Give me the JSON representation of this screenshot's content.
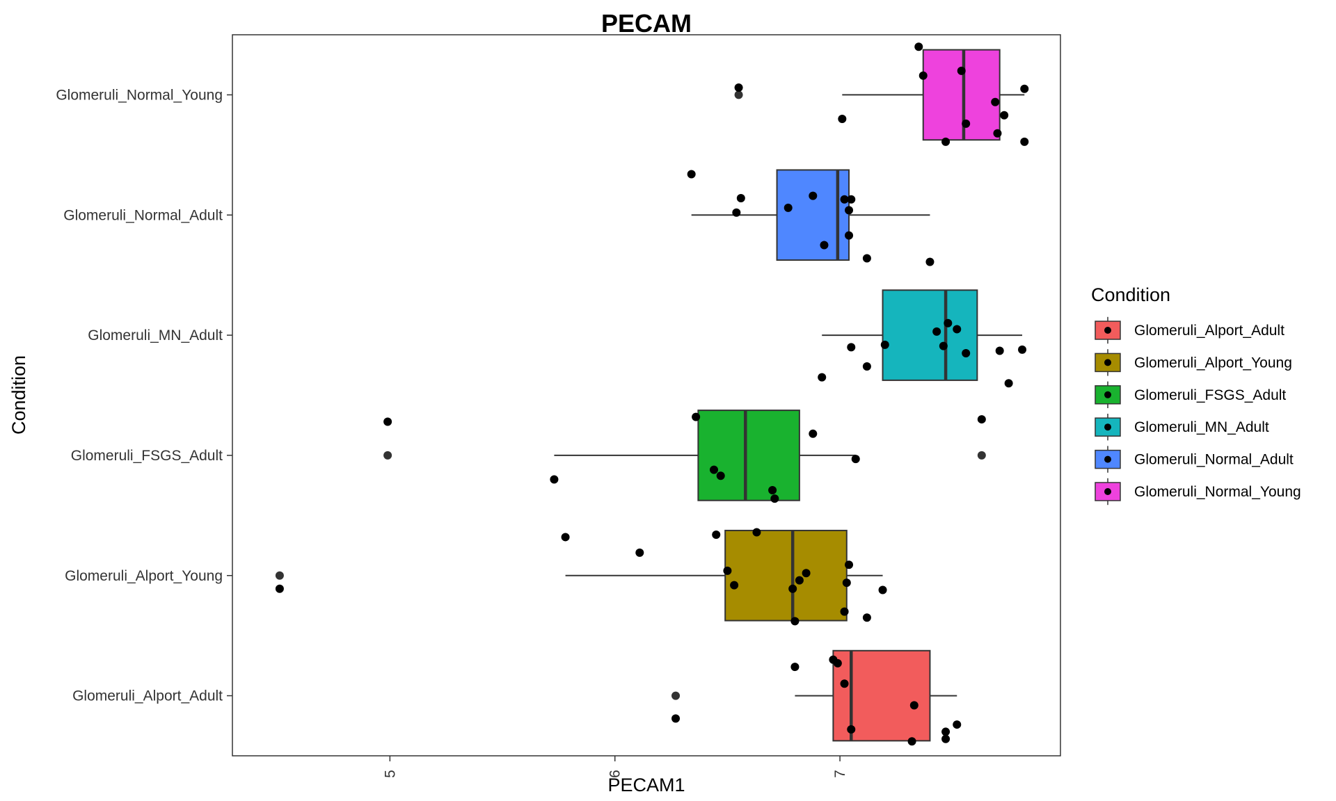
{
  "chart_data": {
    "type": "boxplot",
    "orientation": "horizontal",
    "title": "PECAM",
    "xlabel": "PECAM1",
    "ylabel": "Condition",
    "xlim": [
      4.3,
      7.98
    ],
    "xticks": [
      5,
      6,
      7
    ],
    "xtick_labels": [
      "5",
      "6",
      "7"
    ],
    "categories": [
      "Glomeruli_Alport_Adult",
      "Glomeruli_Alport_Young",
      "Glomeruli_FSGS_Adult",
      "Glomeruli_MN_Adult",
      "Glomeruli_Normal_Adult",
      "Glomeruli_Normal_Young"
    ],
    "legend": {
      "title": "Condition",
      "position": "right",
      "entries": [
        "Glomeruli_Alport_Adult",
        "Glomeruli_Alport_Young",
        "Glomeruli_FSGS_Adult",
        "Glomeruli_MN_Adult",
        "Glomeruli_Normal_Adult",
        "Glomeruli_Normal_Young"
      ]
    },
    "colors": [
      "#F25C5C",
      "#A68C00",
      "#19B22F",
      "#15B5BD",
      "#4F87FF",
      "#EE42DD"
    ],
    "grid": false,
    "series": [
      {
        "name": "Glomeruli_Alport_Adult",
        "box": {
          "min": 6.8,
          "q1": 6.97,
          "median": 7.05,
          "q3": 7.4,
          "max": 7.52
        },
        "outliers": [
          6.27
        ],
        "points": [
          [
            6.8,
            0.24
          ],
          [
            6.97,
            0.3
          ],
          [
            6.99,
            0.27
          ],
          [
            7.02,
            0.1
          ],
          [
            7.33,
            -0.08
          ],
          [
            7.05,
            -0.28
          ],
          [
            7.47,
            -0.3
          ],
          [
            7.52,
            -0.24
          ],
          [
            7.47,
            -0.36
          ],
          [
            7.32,
            -0.38
          ],
          [
            6.27,
            -0.19
          ]
        ]
      },
      {
        "name": "Glomeruli_Alport_Young",
        "box": {
          "min": 5.78,
          "q1": 6.49,
          "median": 6.79,
          "q3": 7.03,
          "max": 7.19
        },
        "outliers": [
          4.51
        ],
        "points": [
          [
            5.78,
            0.32
          ],
          [
            6.11,
            0.19
          ],
          [
            6.45,
            0.34
          ],
          [
            6.63,
            0.36
          ],
          [
            6.5,
            0.04
          ],
          [
            6.53,
            -0.08
          ],
          [
            6.85,
            0.02
          ],
          [
            6.82,
            -0.04
          ],
          [
            6.79,
            -0.11
          ],
          [
            7.04,
            0.09
          ],
          [
            7.03,
            -0.06
          ],
          [
            7.19,
            -0.12
          ],
          [
            7.02,
            -0.3
          ],
          [
            7.12,
            -0.35
          ],
          [
            6.8,
            -0.38
          ],
          [
            4.51,
            -0.11
          ]
        ]
      },
      {
        "name": "Glomeruli_FSGS_Adult",
        "box": {
          "min": 5.73,
          "q1": 6.37,
          "median": 6.58,
          "q3": 6.82,
          "max": 7.07
        },
        "outliers": [
          4.99,
          7.63
        ],
        "points": [
          [
            6.36,
            0.32
          ],
          [
            6.88,
            0.18
          ],
          [
            6.44,
            -0.12
          ],
          [
            6.47,
            -0.17
          ],
          [
            5.73,
            -0.2
          ],
          [
            6.7,
            -0.29
          ],
          [
            6.71,
            -0.36
          ],
          [
            7.07,
            -0.03
          ],
          [
            4.99,
            0.28
          ],
          [
            7.63,
            0.3
          ]
        ]
      },
      {
        "name": "Glomeruli_MN_Adult",
        "box": {
          "min": 6.92,
          "q1": 7.19,
          "median": 7.47,
          "q3": 7.61,
          "max": 7.81
        },
        "outliers": [],
        "points": [
          [
            7.48,
            0.1
          ],
          [
            7.43,
            0.03
          ],
          [
            7.52,
            0.05
          ],
          [
            7.2,
            -0.08
          ],
          [
            7.46,
            -0.09
          ],
          [
            7.56,
            -0.15
          ],
          [
            7.05,
            -0.1
          ],
          [
            7.12,
            -0.26
          ],
          [
            7.71,
            -0.13
          ],
          [
            7.81,
            -0.12
          ],
          [
            6.92,
            -0.35
          ],
          [
            7.75,
            -0.4
          ]
        ]
      },
      {
        "name": "Glomeruli_Normal_Adult",
        "box": {
          "min": 6.34,
          "q1": 6.72,
          "median": 6.99,
          "q3": 7.04,
          "max": 7.4
        },
        "outliers": [],
        "points": [
          [
            6.34,
            0.34
          ],
          [
            6.56,
            0.14
          ],
          [
            6.88,
            0.16
          ],
          [
            6.77,
            0.06
          ],
          [
            7.02,
            0.13
          ],
          [
            7.05,
            0.13
          ],
          [
            6.54,
            0.02
          ],
          [
            7.04,
            0.04
          ],
          [
            7.04,
            -0.17
          ],
          [
            6.93,
            -0.25
          ],
          [
            7.12,
            -0.36
          ],
          [
            7.4,
            -0.39
          ]
        ]
      },
      {
        "name": "Glomeruli_Normal_Young",
        "box": {
          "min": 7.01,
          "q1": 7.37,
          "median": 7.55,
          "q3": 7.71,
          "max": 7.82
        },
        "outliers": [
          6.55
        ],
        "points": [
          [
            7.35,
            0.4
          ],
          [
            7.37,
            0.16
          ],
          [
            7.54,
            0.2
          ],
          [
            7.82,
            0.05
          ],
          [
            7.69,
            -0.06
          ],
          [
            7.73,
            -0.17
          ],
          [
            7.56,
            -0.24
          ],
          [
            7.7,
            -0.32
          ],
          [
            7.47,
            -0.39
          ],
          [
            7.82,
            -0.39
          ],
          [
            7.01,
            -0.2
          ],
          [
            6.55,
            0.06
          ]
        ]
      }
    ]
  }
}
